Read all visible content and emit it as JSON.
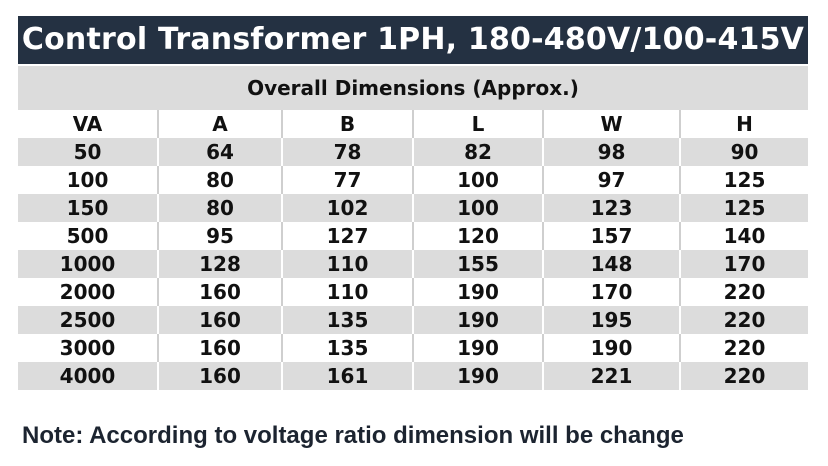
{
  "title": "Control Transformer 1PH, 180-480V/100-415V",
  "subtitle": "Overall Dimensions (Approx.)",
  "table": {
    "columns": [
      "VA",
      "A",
      "B",
      "L",
      "W",
      "H"
    ],
    "rows": [
      [
        50,
        64,
        78,
        82,
        98,
        90
      ],
      [
        100,
        80,
        77,
        100,
        97,
        125
      ],
      [
        150,
        80,
        102,
        100,
        123,
        125
      ],
      [
        500,
        95,
        127,
        120,
        157,
        140
      ],
      [
        1000,
        128,
        110,
        155,
        148,
        170
      ],
      [
        2000,
        160,
        110,
        190,
        170,
        220
      ],
      [
        2500,
        160,
        135,
        190,
        195,
        220
      ],
      [
        3000,
        160,
        135,
        190,
        190,
        220
      ],
      [
        4000,
        160,
        161,
        190,
        221,
        220
      ]
    ]
  },
  "note": "Note: According to voltage ratio dimension will be change"
}
